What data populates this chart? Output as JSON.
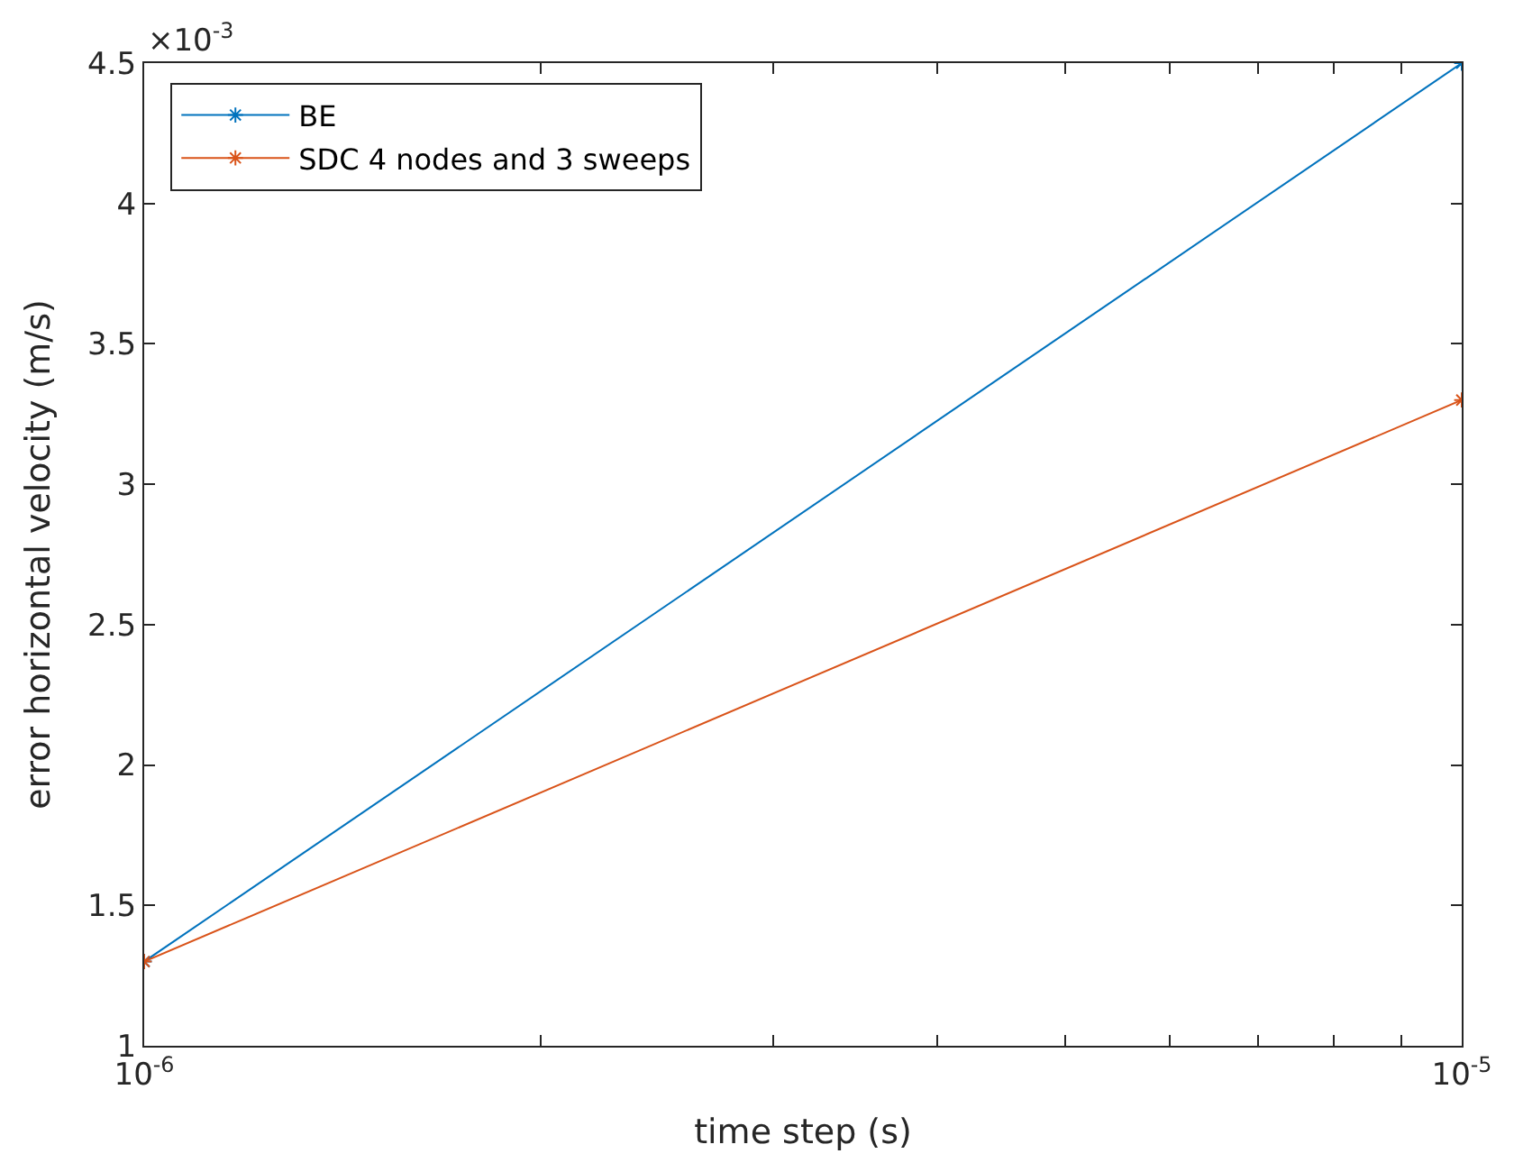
{
  "chart_data": {
    "type": "line",
    "xlabel": "time step (s)",
    "ylabel": "error horizontal velocity (m/s)",
    "x": [
      1e-06,
      1e-05
    ],
    "series": [
      {
        "name": "BE",
        "color": "#0072bd",
        "values": [
          1.3,
          4.5
        ]
      },
      {
        "name": "SDC 4 nodes and 3 sweeps",
        "color": "#d95319",
        "values": [
          1.3,
          3.3
        ]
      }
    ],
    "log": "x",
    "xlim": [
      1e-06,
      1e-05
    ],
    "xticks": [
      {
        "value": 1e-06,
        "label": "10$^{-6}$"
      },
      {
        "value": 2e-06,
        "label": null
      },
      {
        "value": 3e-06,
        "label": null
      },
      {
        "value": 4e-06,
        "label": null
      },
      {
        "value": 5e-06,
        "label": null
      },
      {
        "value": 6e-06,
        "label": null
      },
      {
        "value": 7e-06,
        "label": null
      },
      {
        "value": 8e-06,
        "label": null
      },
      {
        "value": 9e-06,
        "label": null
      },
      {
        "value": 1e-05,
        "label": "10$^{-5}$"
      }
    ],
    "ylim": [
      1,
      4.5
    ],
    "yticks": [
      1,
      1.5,
      2,
      2.5,
      3,
      3.5,
      4,
      4.5
    ],
    "annotations": [
      "×10$^{-3}$"
    ],
    "legend": "top left",
    "marker": "cross",
    "line_style": "solid"
  }
}
